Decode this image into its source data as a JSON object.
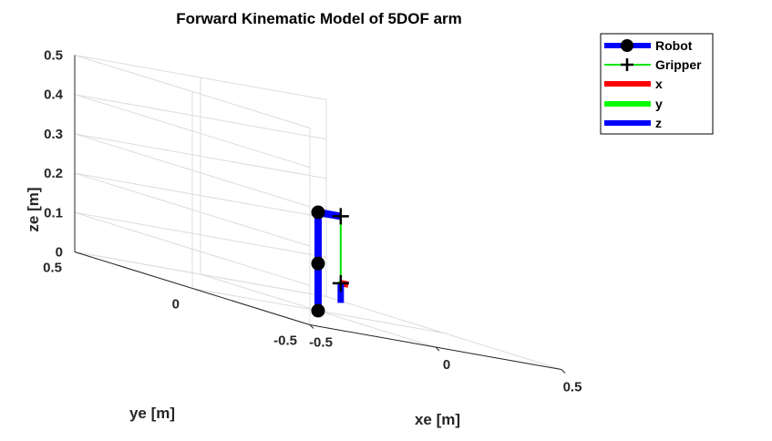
{
  "chart_data": {
    "type": "line",
    "title": "Forward Kinematic Model of 5DOF arm",
    "xlabel": "xe [m]",
    "ylabel": "ye [m]",
    "zlabel": "ze [m]",
    "xlim": [
      -0.5,
      0.5
    ],
    "ylim": [
      -0.5,
      0.5
    ],
    "zlim": [
      0,
      0.5
    ],
    "xticks": [
      "-0.5",
      "0",
      "0.5"
    ],
    "yticks": [
      "-0.5",
      "0",
      "0.5"
    ],
    "zticks": [
      "0",
      "0.1",
      "0.2",
      "0.3",
      "0.4",
      "0.5"
    ],
    "grid": true,
    "legend_location": "top-right",
    "legend": [
      "Robot",
      "Gripper",
      "x",
      "y",
      "z"
    ],
    "colors": {
      "robot": "#0000ff",
      "gripper": "#00e600",
      "x": "#ff0000",
      "y": "#00ff00",
      "z": "#0000ff",
      "joint": "#000000"
    },
    "series": [
      {
        "name": "Robot",
        "points": [
          {
            "x": 0,
            "y": 0,
            "z": 0
          },
          {
            "x": 0,
            "y": 0,
            "z": 0.12
          },
          {
            "x": 0,
            "y": 0,
            "z": 0.25
          },
          {
            "x": 0.09,
            "y": 0,
            "z": 0.25
          }
        ]
      },
      {
        "name": "Gripper",
        "points": [
          {
            "x": 0.09,
            "y": 0,
            "z": 0.25
          },
          {
            "x": 0.09,
            "y": 0,
            "z": 0.08
          }
        ]
      },
      {
        "name": "x",
        "points": [
          {
            "x": 0.09,
            "y": 0,
            "z": 0.08
          },
          {
            "x": 0.12,
            "y": 0,
            "z": 0.08
          }
        ]
      },
      {
        "name": "y",
        "points": [
          {
            "x": 0.09,
            "y": 0,
            "z": 0.08
          },
          {
            "x": 0.11,
            "y": 0.02,
            "z": 0.08
          }
        ]
      },
      {
        "name": "z",
        "points": [
          {
            "x": 0.09,
            "y": 0,
            "z": 0.08
          },
          {
            "x": 0.09,
            "y": 0,
            "z": 0.03
          }
        ]
      }
    ]
  }
}
